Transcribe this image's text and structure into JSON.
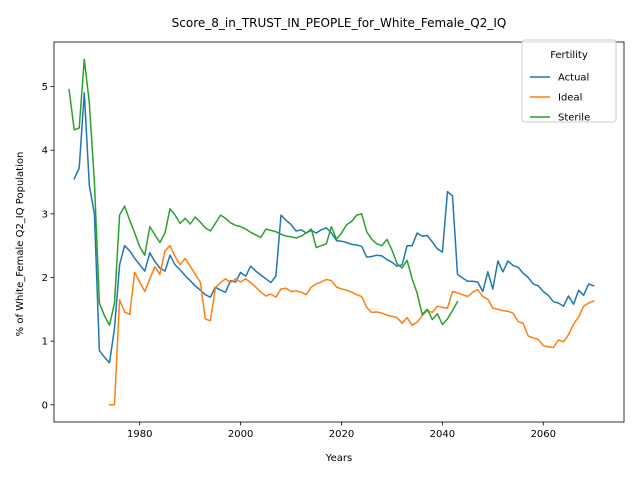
{
  "chart_data": {
    "type": "line",
    "title": "Score_8_in_TRUST_IN_PEOPLE_for_White_Female_Q2_IQ",
    "xlabel": "Years",
    "ylabel": "% of White_Female Q2_IQ Population",
    "xlim": [
      1963,
      2076
    ],
    "ylim": [
      -0.27,
      5.7
    ],
    "xticks": [
      1980,
      2000,
      2020,
      2040,
      2060
    ],
    "yticks": [
      0,
      1,
      2,
      3,
      4,
      5
    ],
    "grid": false,
    "legend": {
      "title": "Fertility",
      "placement": "top-right"
    },
    "series": [
      {
        "name": "Actual",
        "color": "#1f77b4",
        "points": [
          [
            1967,
            3.55
          ],
          [
            1968,
            3.72
          ],
          [
            1969,
            4.9
          ],
          [
            1970,
            3.45
          ],
          [
            1971,
            3.0
          ],
          [
            1972,
            0.85
          ],
          [
            1973,
            0.75
          ],
          [
            1974,
            0.66
          ],
          [
            1975,
            1.2
          ],
          [
            1976,
            2.2
          ],
          [
            1977,
            2.5
          ],
          [
            1978,
            2.42
          ],
          [
            1979,
            2.3
          ],
          [
            1980,
            2.2
          ],
          [
            1981,
            2.1
          ],
          [
            1982,
            2.39
          ],
          [
            1983,
            2.25
          ],
          [
            1984,
            2.15
          ],
          [
            1985,
            2.1
          ],
          [
            1986,
            2.35
          ],
          [
            1987,
            2.2
          ],
          [
            1988,
            2.12
          ],
          [
            1989,
            2.03
          ],
          [
            1990,
            1.95
          ],
          [
            1991,
            1.87
          ],
          [
            1992,
            1.8
          ],
          [
            1993,
            1.73
          ],
          [
            1994,
            1.69
          ],
          [
            1995,
            1.85
          ],
          [
            1996,
            1.8
          ],
          [
            1997,
            1.77
          ],
          [
            1998,
            1.95
          ],
          [
            1999,
            1.93
          ],
          [
            2000,
            2.08
          ],
          [
            2001,
            2.02
          ],
          [
            2002,
            2.18
          ],
          [
            2003,
            2.1
          ],
          [
            2004,
            2.04
          ],
          [
            2005,
            1.98
          ],
          [
            2006,
            1.92
          ],
          [
            2007,
            2.02
          ],
          [
            2008,
            2.98
          ],
          [
            2009,
            2.9
          ],
          [
            2010,
            2.83
          ],
          [
            2011,
            2.73
          ],
          [
            2012,
            2.75
          ],
          [
            2013,
            2.7
          ],
          [
            2014,
            2.74
          ],
          [
            2015,
            2.7
          ],
          [
            2016,
            2.75
          ],
          [
            2017,
            2.78
          ],
          [
            2018,
            2.7
          ],
          [
            2019,
            2.58
          ],
          [
            2020,
            2.57
          ],
          [
            2021,
            2.55
          ],
          [
            2022,
            2.52
          ],
          [
            2023,
            2.51
          ],
          [
            2024,
            2.49
          ],
          [
            2025,
            2.32
          ],
          [
            2026,
            2.33
          ],
          [
            2027,
            2.35
          ],
          [
            2028,
            2.34
          ],
          [
            2029,
            2.28
          ],
          [
            2030,
            2.24
          ],
          [
            2031,
            2.18
          ],
          [
            2032,
            2.2
          ],
          [
            2033,
            2.5
          ],
          [
            2034,
            2.5
          ],
          [
            2035,
            2.7
          ],
          [
            2036,
            2.65
          ],
          [
            2037,
            2.66
          ],
          [
            2038,
            2.56
          ],
          [
            2039,
            2.45
          ],
          [
            2040,
            2.4
          ],
          [
            2041,
            3.35
          ],
          [
            2042,
            3.28
          ],
          [
            2043,
            2.05
          ],
          [
            2044,
            1.99
          ],
          [
            2045,
            1.94
          ],
          [
            2046,
            1.94
          ],
          [
            2047,
            1.93
          ],
          [
            2048,
            1.78
          ],
          [
            2049,
            2.09
          ],
          [
            2050,
            1.82
          ],
          [
            2051,
            2.26
          ],
          [
            2052,
            2.09
          ],
          [
            2053,
            2.26
          ],
          [
            2054,
            2.19
          ],
          [
            2055,
            2.16
          ],
          [
            2056,
            2.07
          ],
          [
            2057,
            2.0
          ],
          [
            2058,
            1.9
          ],
          [
            2059,
            1.87
          ],
          [
            2060,
            1.78
          ],
          [
            2061,
            1.72
          ],
          [
            2062,
            1.62
          ],
          [
            2063,
            1.6
          ],
          [
            2064,
            1.55
          ],
          [
            2065,
            1.71
          ],
          [
            2066,
            1.58
          ],
          [
            2067,
            1.8
          ],
          [
            2068,
            1.72
          ],
          [
            2069,
            1.9
          ],
          [
            2070,
            1.87
          ]
        ]
      },
      {
        "name": "Ideal",
        "color": "#ff7f0e",
        "points": [
          [
            1974,
            0.0
          ],
          [
            1975,
            0.0
          ],
          [
            1976,
            1.65
          ],
          [
            1977,
            1.46
          ],
          [
            1978,
            1.42
          ],
          [
            1979,
            2.08
          ],
          [
            1980,
            1.93
          ],
          [
            1981,
            1.78
          ],
          [
            1982,
            1.98
          ],
          [
            1983,
            2.17
          ],
          [
            1984,
            2.05
          ],
          [
            1985,
            2.42
          ],
          [
            1986,
            2.5
          ],
          [
            1987,
            2.33
          ],
          [
            1988,
            2.2
          ],
          [
            1989,
            2.3
          ],
          [
            1990,
            2.18
          ],
          [
            1991,
            2.05
          ],
          [
            1992,
            1.93
          ],
          [
            1993,
            1.35
          ],
          [
            1994,
            1.32
          ],
          [
            1995,
            1.84
          ],
          [
            1996,
            1.92
          ],
          [
            1997,
            1.98
          ],
          [
            1998,
            1.92
          ],
          [
            1999,
            1.98
          ],
          [
            2000,
            1.93
          ],
          [
            2001,
            1.98
          ],
          [
            2002,
            1.92
          ],
          [
            2003,
            1.85
          ],
          [
            2004,
            1.77
          ],
          [
            2005,
            1.71
          ],
          [
            2006,
            1.74
          ],
          [
            2007,
            1.69
          ],
          [
            2008,
            1.82
          ],
          [
            2009,
            1.83
          ],
          [
            2010,
            1.78
          ],
          [
            2011,
            1.79
          ],
          [
            2012,
            1.77
          ],
          [
            2013,
            1.73
          ],
          [
            2014,
            1.85
          ],
          [
            2015,
            1.9
          ],
          [
            2016,
            1.93
          ],
          [
            2017,
            1.97
          ],
          [
            2018,
            1.95
          ],
          [
            2019,
            1.85
          ],
          [
            2020,
            1.82
          ],
          [
            2021,
            1.8
          ],
          [
            2022,
            1.77
          ],
          [
            2023,
            1.73
          ],
          [
            2024,
            1.7
          ],
          [
            2025,
            1.53
          ],
          [
            2026,
            1.45
          ],
          [
            2027,
            1.46
          ],
          [
            2028,
            1.44
          ],
          [
            2029,
            1.41
          ],
          [
            2030,
            1.39
          ],
          [
            2031,
            1.37
          ],
          [
            2032,
            1.28
          ],
          [
            2033,
            1.37
          ],
          [
            2034,
            1.25
          ],
          [
            2035,
            1.3
          ],
          [
            2036,
            1.4
          ],
          [
            2037,
            1.48
          ],
          [
            2038,
            1.45
          ],
          [
            2039,
            1.55
          ],
          [
            2040,
            1.53
          ],
          [
            2041,
            1.52
          ],
          [
            2042,
            1.78
          ],
          [
            2043,
            1.76
          ],
          [
            2044,
            1.73
          ],
          [
            2045,
            1.7
          ],
          [
            2046,
            1.77
          ],
          [
            2047,
            1.81
          ],
          [
            2048,
            1.7
          ],
          [
            2049,
            1.66
          ],
          [
            2050,
            1.52
          ],
          [
            2051,
            1.5
          ],
          [
            2052,
            1.48
          ],
          [
            2053,
            1.47
          ],
          [
            2054,
            1.44
          ],
          [
            2055,
            1.31
          ],
          [
            2056,
            1.28
          ],
          [
            2057,
            1.08
          ],
          [
            2058,
            1.05
          ],
          [
            2059,
            1.03
          ],
          [
            2060,
            0.93
          ],
          [
            2061,
            0.91
          ],
          [
            2062,
            0.9
          ],
          [
            2063,
            1.02
          ],
          [
            2064,
            0.99
          ],
          [
            2065,
            1.1
          ],
          [
            2066,
            1.27
          ],
          [
            2067,
            1.38
          ],
          [
            2068,
            1.55
          ],
          [
            2069,
            1.6
          ],
          [
            2070,
            1.63
          ]
        ]
      },
      {
        "name": "Sterile",
        "color": "#2ca02c",
        "points": [
          [
            1966,
            4.95
          ],
          [
            1967,
            4.32
          ],
          [
            1968,
            4.35
          ],
          [
            1969,
            5.43
          ],
          [
            1970,
            4.75
          ],
          [
            1971,
            3.5
          ],
          [
            1972,
            1.6
          ],
          [
            1973,
            1.4
          ],
          [
            1974,
            1.25
          ],
          [
            1975,
            1.6
          ],
          [
            1976,
            2.98
          ],
          [
            1977,
            3.12
          ],
          [
            1978,
            2.9
          ],
          [
            1979,
            2.7
          ],
          [
            1980,
            2.48
          ],
          [
            1981,
            2.35
          ],
          [
            1982,
            2.8
          ],
          [
            1983,
            2.67
          ],
          [
            1984,
            2.55
          ],
          [
            1985,
            2.7
          ],
          [
            1986,
            3.08
          ],
          [
            1987,
            2.98
          ],
          [
            1988,
            2.85
          ],
          [
            1989,
            2.93
          ],
          [
            1990,
            2.84
          ],
          [
            1991,
            2.95
          ],
          [
            1992,
            2.87
          ],
          [
            1993,
            2.78
          ],
          [
            1994,
            2.73
          ],
          [
            1995,
            2.85
          ],
          [
            1996,
            2.98
          ],
          [
            1997,
            2.93
          ],
          [
            1998,
            2.86
          ],
          [
            1999,
            2.82
          ],
          [
            2000,
            2.8
          ],
          [
            2001,
            2.76
          ],
          [
            2002,
            2.71
          ],
          [
            2003,
            2.67
          ],
          [
            2004,
            2.63
          ],
          [
            2005,
            2.76
          ],
          [
            2006,
            2.74
          ],
          [
            2007,
            2.72
          ],
          [
            2008,
            2.68
          ],
          [
            2009,
            2.65
          ],
          [
            2010,
            2.64
          ],
          [
            2011,
            2.62
          ],
          [
            2012,
            2.65
          ],
          [
            2013,
            2.7
          ],
          [
            2014,
            2.76
          ],
          [
            2015,
            2.47
          ],
          [
            2016,
            2.5
          ],
          [
            2017,
            2.53
          ],
          [
            2018,
            2.8
          ],
          [
            2019,
            2.6
          ],
          [
            2020,
            2.7
          ],
          [
            2021,
            2.83
          ],
          [
            2022,
            2.88
          ],
          [
            2023,
            2.98
          ],
          [
            2024,
            3.0
          ],
          [
            2025,
            2.72
          ],
          [
            2026,
            2.6
          ],
          [
            2027,
            2.53
          ],
          [
            2028,
            2.5
          ],
          [
            2029,
            2.6
          ],
          [
            2030,
            2.43
          ],
          [
            2031,
            2.22
          ],
          [
            2032,
            2.15
          ],
          [
            2033,
            2.27
          ],
          [
            2034,
            1.98
          ],
          [
            2035,
            1.75
          ],
          [
            2036,
            1.42
          ],
          [
            2037,
            1.5
          ],
          [
            2038,
            1.34
          ],
          [
            2039,
            1.43
          ],
          [
            2040,
            1.26
          ],
          [
            2041,
            1.35
          ],
          [
            2042,
            1.48
          ],
          [
            2043,
            1.62
          ]
        ]
      }
    ]
  }
}
